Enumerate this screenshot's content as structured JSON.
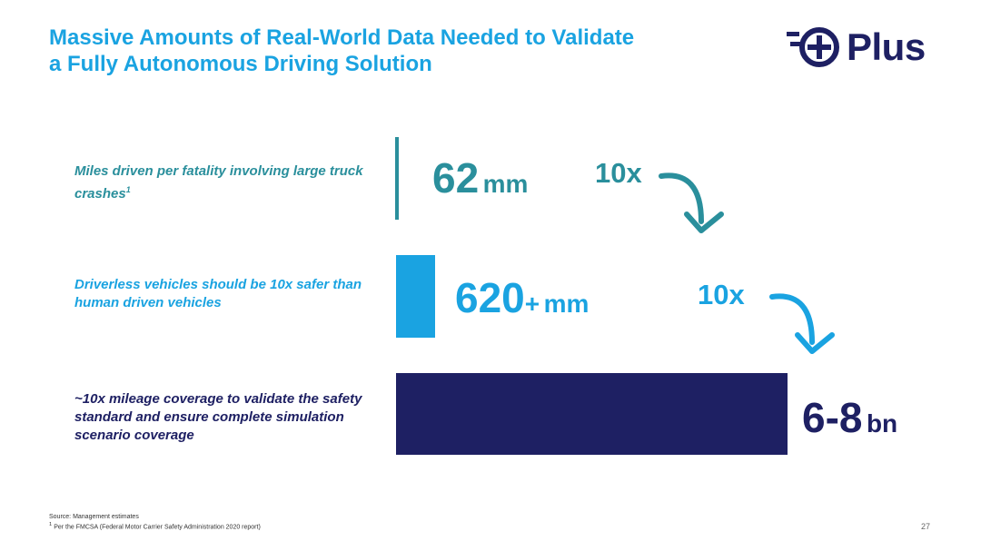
{
  "title": {
    "line1": "Massive Amounts of Real-World Data Needed to Validate",
    "line2": "a Fully Autonomous Driving Solution"
  },
  "logo": {
    "text": "Plus"
  },
  "rows": [
    {
      "label": "Miles driven per fatality involving large truck crashes",
      "footnote_mark": "1",
      "value": "62",
      "unit": "mm",
      "multiplier": "10x",
      "color": "#2a8f9c"
    },
    {
      "label": "Driverless vehicles should be 10x safer than human driven vehicles",
      "value": "620",
      "value_suffix": "+",
      "unit": "mm",
      "multiplier": "10x",
      "color": "#1aa3e1"
    },
    {
      "label": "~10x mileage coverage to validate the safety standard and ensure complete simulation scenario coverage",
      "value": "6-8",
      "unit": "bn",
      "color": "#1e2063"
    }
  ],
  "footer": {
    "source": "Source: Management estimates",
    "note_mark": "1",
    "note": "Per the FMCSA (Federal Motor Carrier Safety Administration 2020 report)",
    "page_number": "27"
  },
  "colors": {
    "title": "#1aa3e1",
    "teal": "#2a8f9c",
    "blue": "#1aa3e1",
    "navy": "#1e2063"
  }
}
